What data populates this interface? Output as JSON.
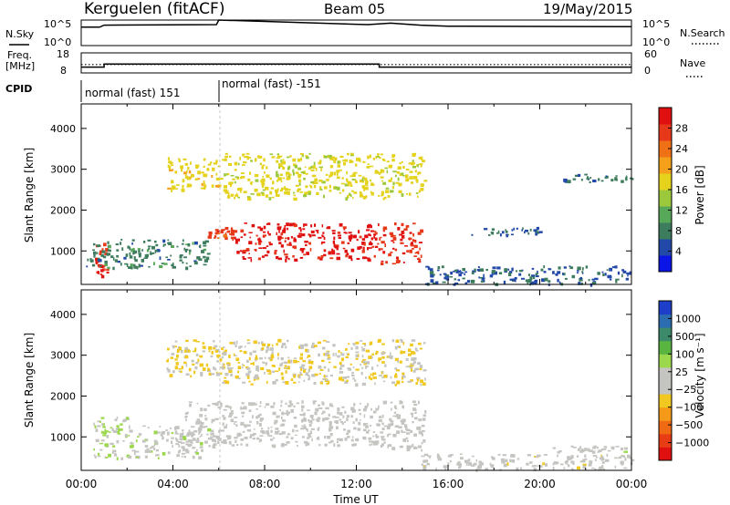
{
  "header": {
    "station": "Kerguelen (fitACF)",
    "beam": "Beam 05",
    "date": "19/May/2015"
  },
  "left_labels": {
    "nsky": "N.Sky",
    "freq_line1": "Freq.",
    "freq_line2": "[MHz]",
    "cpid": "CPID"
  },
  "right_labels": {
    "nsearch": "N.Search",
    "nave": "Nave"
  },
  "cpid_segments": [
    {
      "label": "normal (fast) 151"
    },
    {
      "label": "normal (fast) -151"
    }
  ],
  "power_colorbar": {
    "label": "Power [dB]",
    "ticks": [
      "4",
      "8",
      "12",
      "16",
      "20",
      "24",
      "28"
    ],
    "colors": [
      "#0a14e6",
      "#2248a8",
      "#3e7c5e",
      "#58a85a",
      "#9cc83c",
      "#e4d21c",
      "#f4a01a",
      "#f07016",
      "#e8381a",
      "#e01010"
    ]
  },
  "velocity_colorbar": {
    "label": "Velocity [m s⁻¹]",
    "ticks": [
      "1000",
      "500",
      "100",
      "25",
      "−25",
      "−100",
      "−500",
      "−1000"
    ],
    "colors": [
      "#1c3ec8",
      "#2c6cb0",
      "#3c8a6a",
      "#5ab440",
      "#9cd84c",
      "#c4c4c0",
      "#c4c4c0",
      "#f0c820",
      "#f49a18",
      "#f06a14",
      "#e83c14",
      "#e01010"
    ]
  },
  "axes": {
    "xlabel": "Time UT",
    "xticks": [
      "00:00",
      "04:00",
      "08:00",
      "12:00",
      "16:00",
      "20:00",
      "00:00"
    ],
    "ylabel": "Slant Range [km]",
    "yticks": [
      "1000",
      "2000",
      "3000",
      "4000"
    ],
    "nsky_ticks": [
      "10^5",
      "10^0"
    ],
    "freq_ticks": [
      "18",
      "8"
    ],
    "nave_ticks": [
      "60",
      "0"
    ]
  },
  "chart_data": [
    {
      "type": "line",
      "title": "N.Sky / N.Search",
      "x_unit": "hours UT",
      "xlim": [
        0,
        24
      ],
      "ylim_log10": [
        0,
        5
      ],
      "series": [
        {
          "name": "N.Sky",
          "x": [
            0,
            0.8,
            1.0,
            5.9,
            6.0,
            12.5,
            13.5,
            14.8,
            16.0,
            24
          ],
          "y_log10": [
            3.6,
            3.6,
            4.0,
            4.1,
            5.0,
            4.1,
            4.4,
            4.0,
            3.8,
            3.7
          ]
        }
      ]
    },
    {
      "type": "line",
      "title": "Freq. / Nave",
      "x_unit": "hours UT",
      "xlim": [
        0,
        24
      ],
      "series": [
        {
          "name": "Freq. [MHz]",
          "ylim": [
            8,
            18
          ],
          "x": [
            0,
            1.0,
            1.0,
            13.0,
            13.0,
            24
          ],
          "y": [
            10.9,
            10.9,
            12.4,
            12.4,
            10.9,
            10.9
          ]
        },
        {
          "name": "Nave",
          "ylim": [
            0,
            60
          ],
          "x": [
            0,
            24
          ],
          "y": [
            25,
            25
          ]
        }
      ]
    },
    {
      "type": "heatmap",
      "title": "Power [dB]",
      "x_unit": "hours UT",
      "y_unit": "km",
      "xlim": [
        0,
        24
      ],
      "ylim": [
        180,
        4600
      ],
      "clim": [
        0,
        32
      ],
      "regions": [
        {
          "x": [
            6.7,
            12.9
          ],
          "y": [
            800,
            1700
          ],
          "value": 30
        },
        {
          "x": [
            5.5,
            6.7
          ],
          "y": [
            1300,
            1600
          ],
          "value": 27
        },
        {
          "x": [
            12.9,
            14.8
          ],
          "y": [
            700,
            1700
          ],
          "value": 28
        },
        {
          "x": [
            0.6,
            1.1
          ],
          "y": [
            400,
            1200
          ],
          "value": 28
        },
        {
          "x": [
            3.7,
            6.0
          ],
          "y": [
            2500,
            3300
          ],
          "value": 18
        },
        {
          "x": [
            6.0,
            15.0
          ],
          "y": [
            2300,
            3400
          ],
          "value": 17
        },
        {
          "x": [
            0.2,
            5.5
          ],
          "y": [
            600,
            1300
          ],
          "value": 8
        },
        {
          "x": [
            14.8,
            24.0
          ],
          "y": [
            200,
            650
          ],
          "value": 6
        },
        {
          "x": [
            17.0,
            20.0
          ],
          "y": [
            1400,
            1600
          ],
          "value": 6
        },
        {
          "x": [
            21.0,
            24.0
          ],
          "y": [
            2700,
            2900
          ],
          "value": 7
        }
      ]
    },
    {
      "type": "heatmap",
      "title": "Velocity [m s⁻¹]",
      "x_unit": "hours UT",
      "y_unit": "km",
      "xlim": [
        0,
        24
      ],
      "ylim": [
        180,
        4600
      ],
      "clim": [
        -1000,
        1000
      ],
      "regions": [
        {
          "x": [
            4.5,
            13.0
          ],
          "y": [
            800,
            1900
          ],
          "value": 0
        },
        {
          "x": [
            13.0,
            15.0
          ],
          "y": [
            700,
            1900
          ],
          "value": 0
        },
        {
          "x": [
            3.7,
            6.0
          ],
          "y": [
            2500,
            3400
          ],
          "value": -200
        },
        {
          "x": [
            6.0,
            15.0
          ],
          "y": [
            2300,
            3400
          ],
          "value": -150
        },
        {
          "x": [
            0.5,
            2.0
          ],
          "y": [
            500,
            1500
          ],
          "value": 150
        },
        {
          "x": [
            2.0,
            5.5
          ],
          "y": [
            500,
            1300
          ],
          "value": 80
        },
        {
          "x": [
            14.8,
            24.0
          ],
          "y": [
            200,
            600
          ],
          "value": -60
        },
        {
          "x": [
            20.5,
            24.0
          ],
          "y": [
            650,
            800
          ],
          "value": 60
        }
      ]
    }
  ]
}
